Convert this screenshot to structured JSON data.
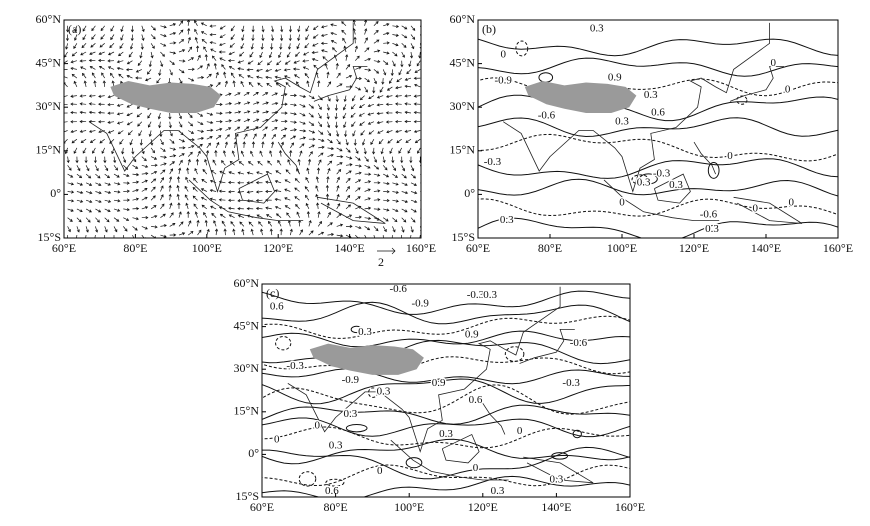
{
  "chart_data": [
    {
      "type": "map",
      "panel_label": "(a)",
      "xlim": [
        60,
        160
      ],
      "ylim": [
        -15,
        60
      ],
      "xticks": [
        {
          "value": 60,
          "label": "60°E"
        },
        {
          "value": 80,
          "label": "80°E"
        },
        {
          "value": 100,
          "label": "100°E"
        },
        {
          "value": 120,
          "label": "120°E"
        },
        {
          "value": 140,
          "label": "140°E"
        },
        {
          "value": 160,
          "label": "160°E"
        }
      ],
      "yticks": [
        {
          "value": -15,
          "label": "15°S"
        },
        {
          "value": 0,
          "label": "0°"
        },
        {
          "value": 15,
          "label": "15°N"
        },
        {
          "value": 30,
          "label": "30°N"
        },
        {
          "value": 45,
          "label": "45°N"
        },
        {
          "value": 60,
          "label": "60°N"
        }
      ],
      "vector_key": "2",
      "annotations": []
    },
    {
      "type": "map",
      "panel_label": "(b)",
      "xlim": [
        60,
        160
      ],
      "ylim": [
        -15,
        60
      ],
      "xticks": [
        {
          "value": 60,
          "label": "60°E"
        },
        {
          "value": 80,
          "label": "80°E"
        },
        {
          "value": 100,
          "label": "100°E"
        },
        {
          "value": 120,
          "label": "120°E"
        },
        {
          "value": 140,
          "label": "140°E"
        },
        {
          "value": 160,
          "label": "160°E"
        }
      ],
      "yticks": [
        {
          "value": -15,
          "label": "15°S"
        },
        {
          "value": 0,
          "label": "0°"
        },
        {
          "value": 15,
          "label": "15°N"
        },
        {
          "value": 30,
          "label": "30°N"
        },
        {
          "value": 45,
          "label": "45°N"
        },
        {
          "value": 60,
          "label": "60°N"
        }
      ],
      "annotations": [
        {
          "text": "0.3",
          "lon": 93,
          "lat": 57
        },
        {
          "text": "0",
          "lon": 67,
          "lat": 48
        },
        {
          "text": "-0.9",
          "lon": 67,
          "lat": 39
        },
        {
          "text": "0.9",
          "lon": 98,
          "lat": 40
        },
        {
          "text": "0.3",
          "lon": 108,
          "lat": 34
        },
        {
          "text": "-0.6",
          "lon": 79,
          "lat": 27
        },
        {
          "text": "0.6",
          "lon": 110,
          "lat": 28
        },
        {
          "text": "0.3",
          "lon": 100,
          "lat": 25
        },
        {
          "text": "0",
          "lon": 142,
          "lat": 45
        },
        {
          "text": "0",
          "lon": 146,
          "lat": 36
        },
        {
          "text": "-0.3",
          "lon": 64,
          "lat": 11
        },
        {
          "text": "0",
          "lon": 130,
          "lat": 13
        },
        {
          "text": "0.3",
          "lon": 106,
          "lat": 4
        },
        {
          "text": "-0.3",
          "lon": 111,
          "lat": 7
        },
        {
          "text": "0.3",
          "lon": 115,
          "lat": 3
        },
        {
          "text": "0",
          "lon": 100,
          "lat": -3
        },
        {
          "text": "0.3",
          "lon": 68,
          "lat": -9
        },
        {
          "text": "-0.6",
          "lon": 124,
          "lat": -7
        },
        {
          "text": "0",
          "lon": 137,
          "lat": -5
        },
        {
          "text": "0.3",
          "lon": 125,
          "lat": -12
        },
        {
          "text": "0",
          "lon": 147,
          "lat": -3
        }
      ]
    },
    {
      "type": "map",
      "panel_label": "(c)",
      "xlim": [
        60,
        160
      ],
      "ylim": [
        -15,
        60
      ],
      "xticks": [
        {
          "value": 60,
          "label": "60°E"
        },
        {
          "value": 80,
          "label": "80°E"
        },
        {
          "value": 100,
          "label": "100°E"
        },
        {
          "value": 120,
          "label": "120°E"
        },
        {
          "value": 140,
          "label": "140°E"
        },
        {
          "value": 160,
          "label": "160°E"
        }
      ],
      "yticks": [
        {
          "value": -15,
          "label": "15°S"
        },
        {
          "value": 0,
          "label": "0°"
        },
        {
          "value": 15,
          "label": "15°N"
        },
        {
          "value": 30,
          "label": "30°N"
        },
        {
          "value": 45,
          "label": "45°N"
        },
        {
          "value": 60,
          "label": "60°N"
        }
      ],
      "annotations": [
        {
          "text": "-0.6",
          "lon": 97,
          "lat": 58
        },
        {
          "text": "0.6",
          "lon": 64,
          "lat": 52
        },
        {
          "text": "-0.9",
          "lon": 103,
          "lat": 53
        },
        {
          "text": "-0.3",
          "lon": 118,
          "lat": 56
        },
        {
          "text": "0.3",
          "lon": 122,
          "lat": 56
        },
        {
          "text": "0.3",
          "lon": 88,
          "lat": 43
        },
        {
          "text": "0.9",
          "lon": 117,
          "lat": 42
        },
        {
          "text": "-0.6",
          "lon": 146,
          "lat": 39
        },
        {
          "text": "-0.3",
          "lon": 69,
          "lat": 31
        },
        {
          "text": "-0.9",
          "lon": 84,
          "lat": 26
        },
        {
          "text": "0.9",
          "lon": 108,
          "lat": 25
        },
        {
          "text": "0.3",
          "lon": 93,
          "lat": 22
        },
        {
          "text": "0.6",
          "lon": 118,
          "lat": 19
        },
        {
          "text": "-0.3",
          "lon": 144,
          "lat": 25
        },
        {
          "text": "0.3",
          "lon": 84,
          "lat": 14
        },
        {
          "text": "0",
          "lon": 75,
          "lat": 10
        },
        {
          "text": "0.3",
          "lon": 110,
          "lat": 7
        },
        {
          "text": "0",
          "lon": 64,
          "lat": 5
        },
        {
          "text": "0.3",
          "lon": 80,
          "lat": 3
        },
        {
          "text": "0",
          "lon": 130,
          "lat": 8
        },
        {
          "text": "0",
          "lon": 92,
          "lat": -6
        },
        {
          "text": "0",
          "lon": 118,
          "lat": -5
        },
        {
          "text": "0.6",
          "lon": 79,
          "lat": -13
        },
        {
          "text": "0.3",
          "lon": 124,
          "lat": -13
        },
        {
          "text": "0.3",
          "lon": 140,
          "lat": -9
        }
      ]
    }
  ]
}
